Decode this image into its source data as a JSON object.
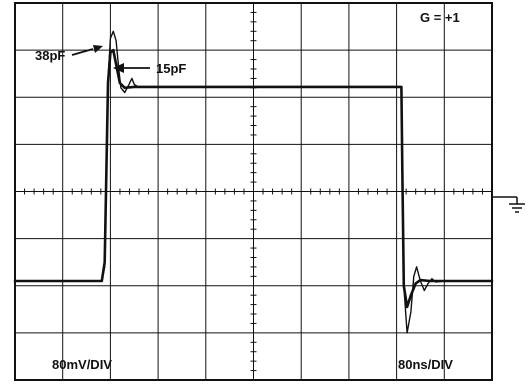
{
  "chart_data": {
    "type": "line",
    "title": "",
    "xlabel": "",
    "ylabel": "",
    "x_divisions": 10,
    "y_divisions": 8,
    "xlim": [
      0,
      10
    ],
    "ylim": [
      -4,
      4
    ],
    "grid": true,
    "gain_label": "G = +1",
    "vertical_scale": "80mV/DIV",
    "horizontal_scale": "80ns/DIV",
    "series": [
      {
        "name": "38pF",
        "points": [
          [
            0,
            -1.9
          ],
          [
            1.82,
            -1.9
          ],
          [
            1.88,
            -1.6
          ],
          [
            1.95,
            2.35
          ],
          [
            2.0,
            3.25
          ],
          [
            2.06,
            3.4
          ],
          [
            2.12,
            3.2
          ],
          [
            2.18,
            2.55
          ],
          [
            2.22,
            2.2
          ],
          [
            2.3,
            2.1
          ],
          [
            2.38,
            2.25
          ],
          [
            2.45,
            2.4
          ],
          [
            2.5,
            2.27
          ],
          [
            2.58,
            2.22
          ],
          [
            3.0,
            2.22
          ],
          [
            8.1,
            2.22
          ],
          [
            8.12,
            0.5
          ],
          [
            8.15,
            -2.0
          ],
          [
            8.22,
            -3.0
          ],
          [
            8.3,
            -2.55
          ],
          [
            8.36,
            -1.8
          ],
          [
            8.42,
            -1.6
          ],
          [
            8.5,
            -1.9
          ],
          [
            8.58,
            -2.1
          ],
          [
            8.66,
            -1.95
          ],
          [
            8.74,
            -1.85
          ],
          [
            8.82,
            -1.92
          ],
          [
            9.0,
            -1.9
          ],
          [
            10,
            -1.9
          ]
        ]
      },
      {
        "name": "15pF",
        "points": [
          [
            0,
            -1.9
          ],
          [
            1.82,
            -1.9
          ],
          [
            1.88,
            -1.5
          ],
          [
            1.95,
            2.3
          ],
          [
            2.0,
            2.95
          ],
          [
            2.06,
            3.0
          ],
          [
            2.12,
            2.7
          ],
          [
            2.2,
            2.3
          ],
          [
            2.3,
            2.2
          ],
          [
            2.5,
            2.22
          ],
          [
            3.0,
            2.22
          ],
          [
            8.1,
            2.22
          ],
          [
            8.12,
            0.5
          ],
          [
            8.15,
            -2.0
          ],
          [
            8.22,
            -2.45
          ],
          [
            8.3,
            -2.2
          ],
          [
            8.4,
            -1.95
          ],
          [
            8.5,
            -1.88
          ],
          [
            8.7,
            -1.9
          ],
          [
            10,
            -1.9
          ]
        ]
      }
    ],
    "annotations": [
      {
        "text": "38pF",
        "series": "38pF",
        "x": 2.0,
        "y": 3.4
      },
      {
        "text": "15pF",
        "series": "15pF",
        "x": 2.06,
        "y": 3.0
      }
    ],
    "ground_marker": "ground"
  }
}
